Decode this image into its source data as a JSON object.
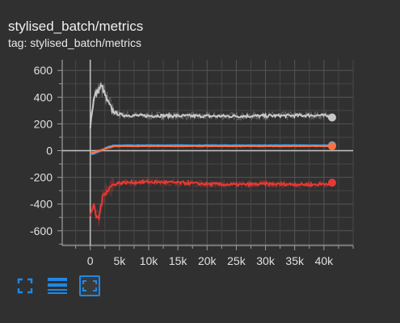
{
  "card": {
    "title": "stylised_batch/metrics",
    "tag_text": "tag: stylised_batch/metrics"
  },
  "toolbar": {
    "buttons": [
      {
        "name": "fullscreen-icon",
        "active": false
      },
      {
        "name": "toggle-log-scale-icon",
        "active": false
      },
      {
        "name": "fit-domain-icon",
        "active": true
      }
    ],
    "accent": "#1e88e5"
  },
  "chart_data": {
    "type": "line",
    "title": "",
    "xlabel": "",
    "ylabel": "",
    "xlim": [
      -4800,
      45000
    ],
    "ylim": [
      -710,
      680
    ],
    "x_ticks": [
      0,
      5000,
      10000,
      15000,
      20000,
      25000,
      30000,
      35000,
      40000
    ],
    "x_tick_labels": [
      "0",
      "5k",
      "10k",
      "15k",
      "20k",
      "25k",
      "30k",
      "35k",
      "40k"
    ],
    "y_ticks": [
      -600,
      -400,
      -200,
      0,
      200,
      400,
      600
    ],
    "y_tick_labels": [
      "-600",
      "-400",
      "-200",
      "0",
      "200",
      "400",
      "600"
    ],
    "grid": true,
    "series": [
      {
        "color": "#c8c8c8",
        "x": [
          0,
          300,
          600,
          900,
          1200,
          1500,
          1800,
          2100,
          2500,
          3000,
          3500,
          4000,
          5000,
          6000,
          8000,
          10000,
          12000,
          15000,
          20000,
          25000,
          30000,
          35000,
          38000,
          40000,
          41000,
          41400
        ],
        "y": [
          180,
          300,
          380,
          420,
          440,
          460,
          480,
          470,
          420,
          360,
          320,
          290,
          270,
          265,
          262,
          260,
          262,
          260,
          258,
          258,
          260,
          262,
          265,
          262,
          255,
          248
        ]
      },
      {
        "color": "#42a5f5",
        "x": [
          0,
          1000,
          2000,
          3000,
          4000,
          6000,
          10000,
          20000,
          30000,
          40000,
          41400
        ],
        "y": [
          -30,
          -15,
          5,
          25,
          38,
          40,
          40,
          40,
          40,
          40,
          40
        ]
      },
      {
        "color": "#ff7043",
        "x": [
          0,
          1000,
          2000,
          3000,
          4000,
          6000,
          10000,
          20000,
          30000,
          40000,
          41400
        ],
        "y": [
          -20,
          -10,
          5,
          20,
          32,
          33,
          33,
          33,
          33,
          33,
          33
        ]
      },
      {
        "color": "#e53935",
        "x": [
          0,
          300,
          600,
          900,
          1200,
          1500,
          1800,
          2100,
          2400,
          2800,
          3300,
          3800,
          4500,
          5500,
          7000,
          9000,
          12000,
          15000,
          20000,
          25000,
          30000,
          35000,
          38000,
          40000,
          41000,
          41400
        ],
        "y": [
          -480,
          -440,
          -420,
          -470,
          -510,
          -500,
          -420,
          -360,
          -320,
          -300,
          -280,
          -260,
          -245,
          -240,
          -238,
          -235,
          -236,
          -240,
          -250,
          -255,
          -250,
          -252,
          -255,
          -250,
          -245,
          -240
        ]
      }
    ]
  }
}
